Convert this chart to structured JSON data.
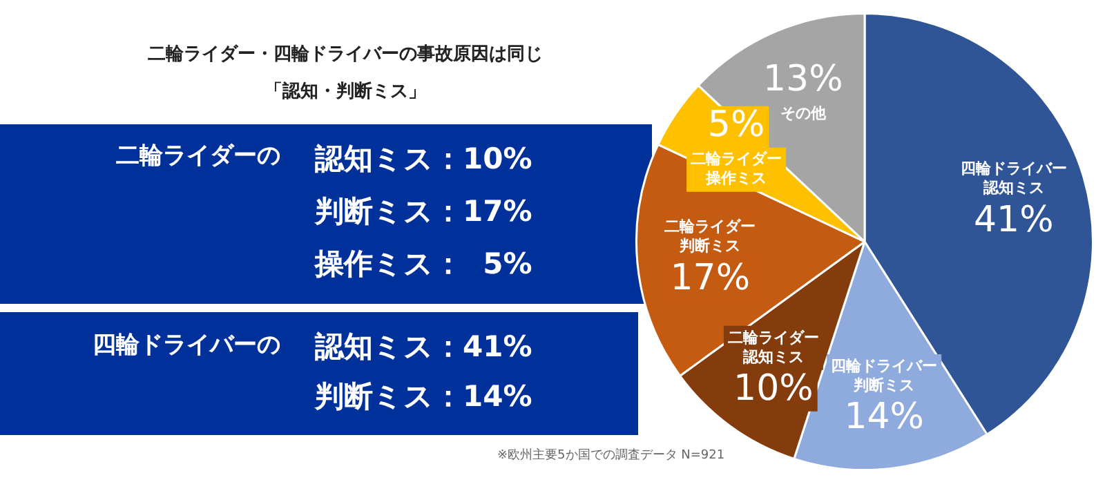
{
  "chart_data": {
    "type": "pie",
    "title": "二輪ライダー・四輪ドライバーの事故原因は同じ",
    "subtitle": "「認知・判断ミス」",
    "categories": [
      "四輪ドライバー認知ミス",
      "四輪ドライバー判断ミス",
      "二輪ライダー認知ミス",
      "二輪ライダー判断ミス",
      "二輪ライダー操作ミス",
      "その他"
    ],
    "values": [
      41,
      14,
      10,
      17,
      5,
      13
    ],
    "value_labels": [
      "41%",
      "14%",
      "10%",
      "17%",
      "5%",
      "13%"
    ],
    "colors": [
      "#2f5597",
      "#8faadc",
      "#843c0c",
      "#c55a11",
      "#ffc000",
      "#a5a5a5"
    ],
    "annotations": [
      "二輪ライダーの",
      "認知ミス：10%",
      "判断ミス：17%",
      "操作ミス：  5%",
      "四輪ドライバーの",
      "認知ミス：41%",
      "判断ミス：14%",
      "※欧州主要5か国での調査データ N=921"
    ],
    "legend": false
  }
}
